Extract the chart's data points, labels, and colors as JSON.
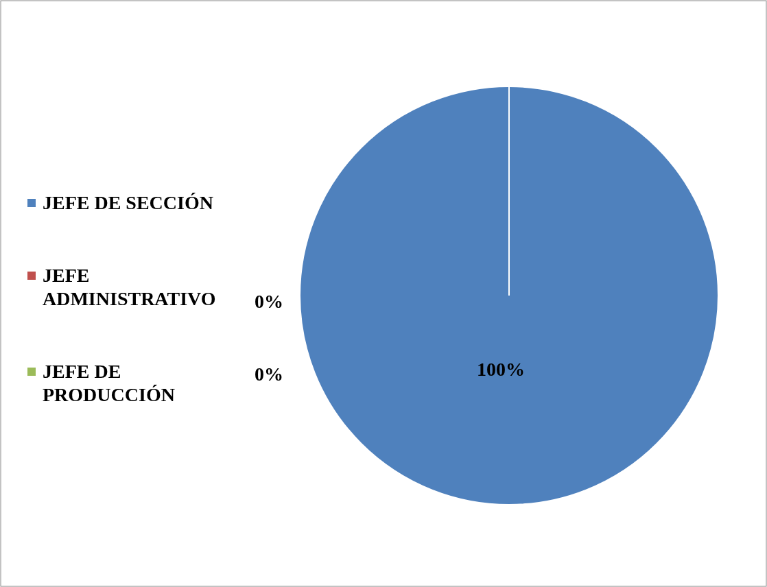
{
  "chart_data": {
    "type": "pie",
    "categories": [
      "JEFE DE SECCIÓN",
      "JEFE ADMINISTRATIVO",
      "JEFE DE PRODUCCIÓN"
    ],
    "values": [
      100,
      0,
      0
    ],
    "colors": [
      "#4f81bd",
      "#c0504d",
      "#9bbb59"
    ],
    "value_labels": [
      "100%",
      "0%",
      "0%"
    ],
    "legend": "left"
  }
}
